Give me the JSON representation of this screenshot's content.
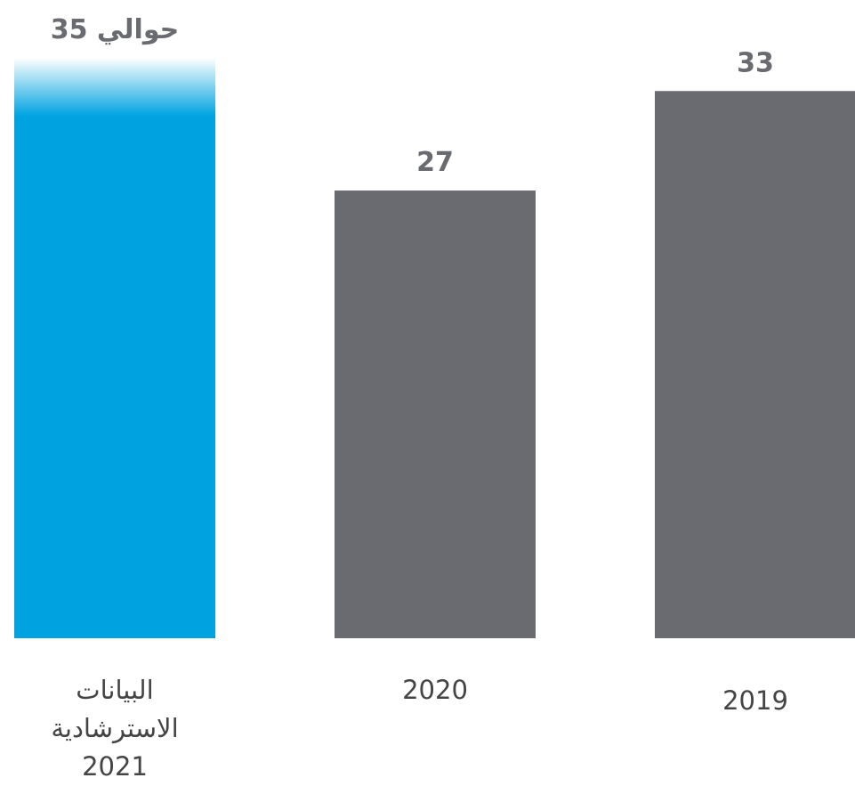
{
  "chart_data": {
    "type": "bar",
    "categories": [
      "البيانات الاسترشادية 2021",
      "2020",
      "2019"
    ],
    "values": [
      35,
      27,
      33
    ],
    "value_labels": [
      "حوالي 35",
      "27",
      "33"
    ],
    "colors": [
      "#00a3e0",
      "#696b70",
      "#696b70"
    ]
  }
}
